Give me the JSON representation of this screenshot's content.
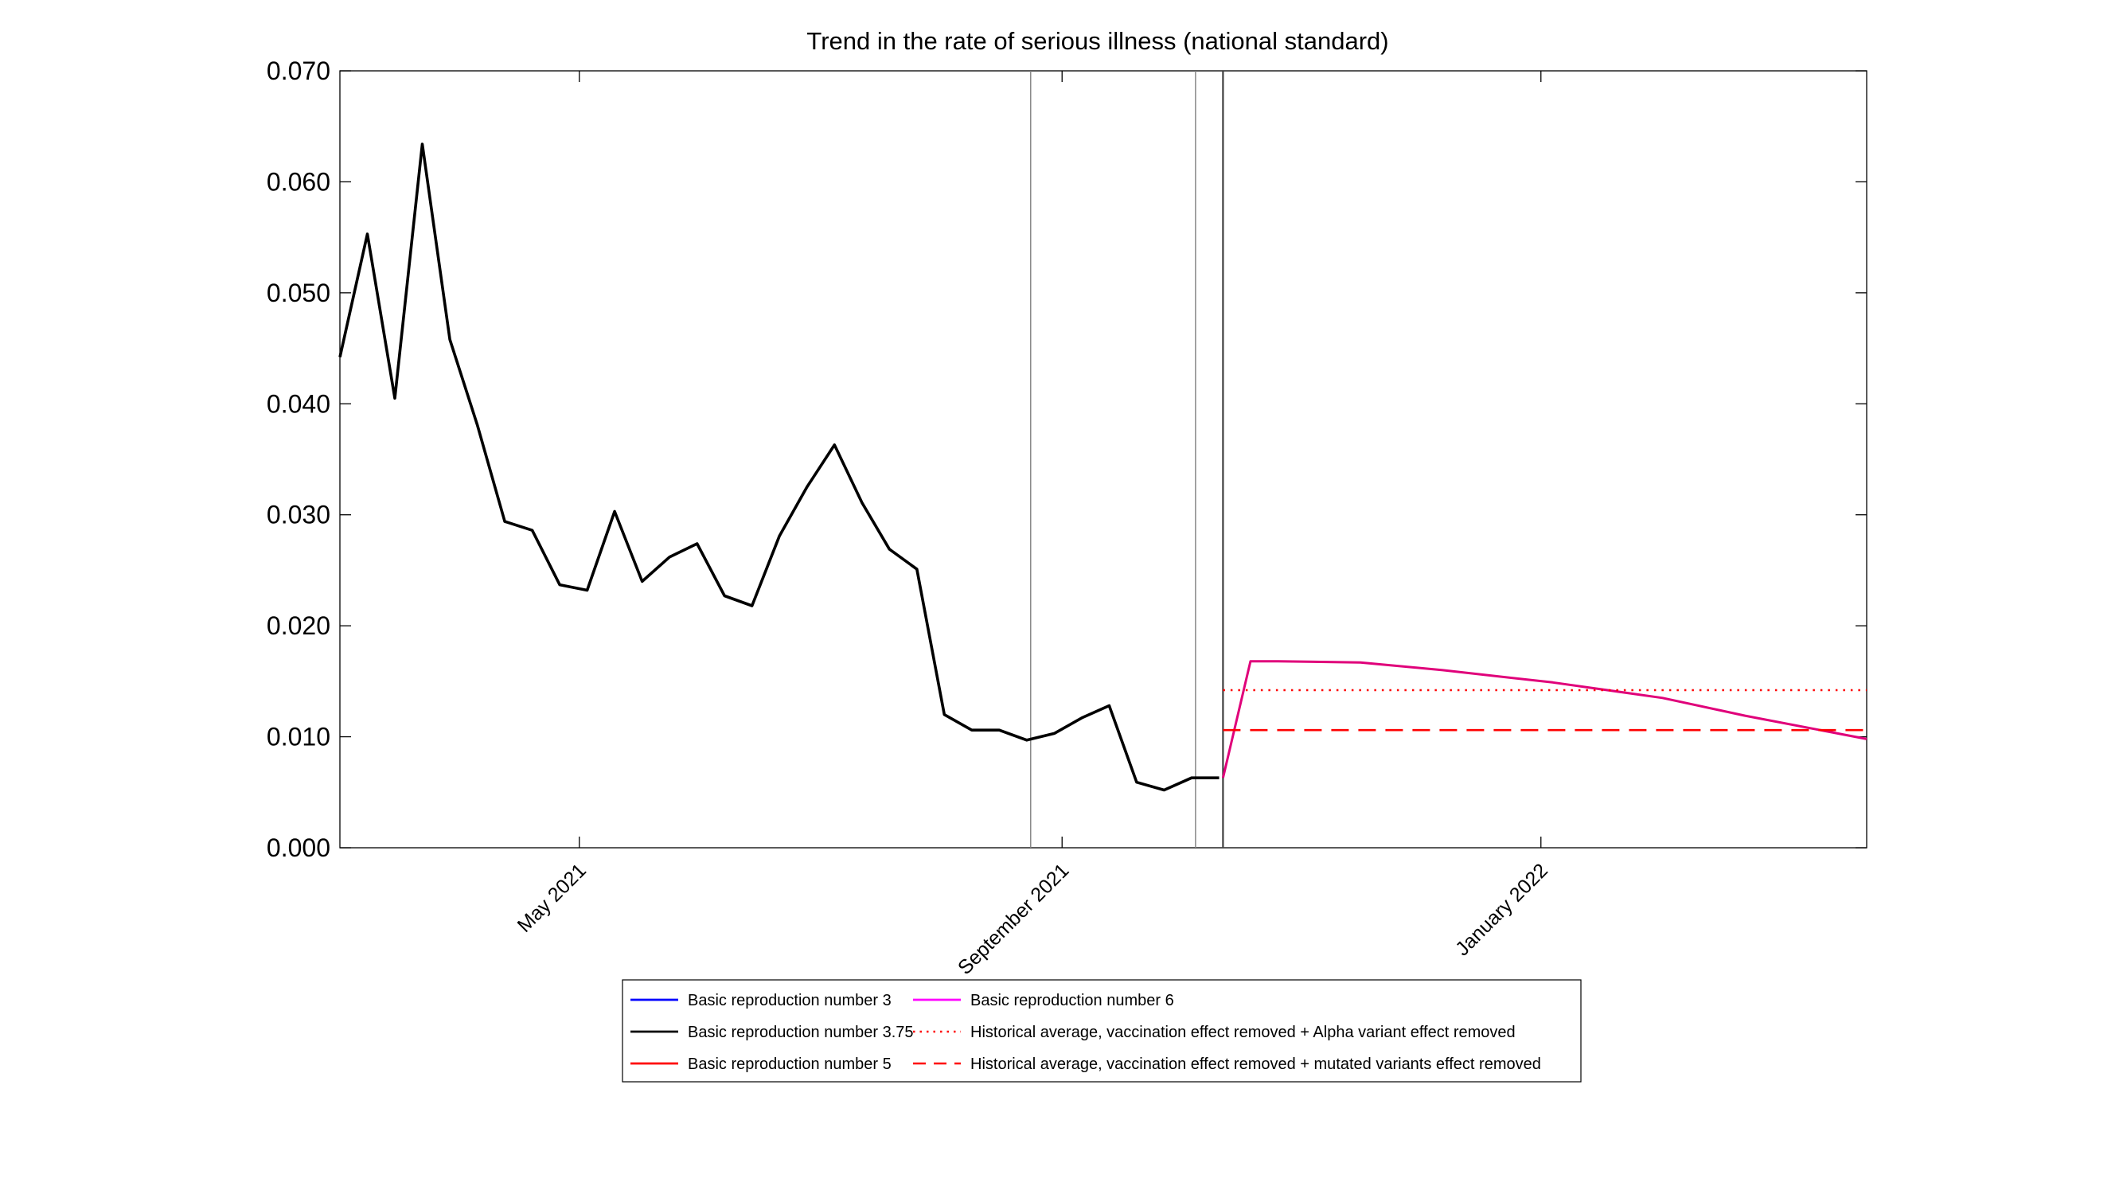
{
  "chart_data": {
    "type": "line",
    "title": "Trend in the rate of serious illness (national standard)",
    "xlabel": "",
    "ylabel": "",
    "x_type": "date",
    "xlim": [
      "2021-03-01",
      "2022-03-25"
    ],
    "ylim": [
      0,
      0.07
    ],
    "yticks": [
      0,
      0.01,
      0.02,
      0.03,
      0.04,
      0.05,
      0.06,
      0.07
    ],
    "ytick_labels": [
      "0.000",
      "0.010",
      "0.020",
      "0.030",
      "0.040",
      "0.050",
      "0.060",
      "0.070"
    ],
    "xticks": [
      {
        "date": "2021-05-01",
        "label": "May 2021"
      },
      {
        "date": "2021-09-01",
        "label": "September 2021"
      },
      {
        "date": "2022-01-01",
        "label": "January 2022"
      }
    ],
    "grid": false,
    "vertical_lines": [
      {
        "date": "2021-08-24",
        "color": "#808080"
      },
      {
        "date": "2021-10-05",
        "color": "#808080"
      },
      {
        "date": "2021-10-12",
        "color": "#404040"
      }
    ],
    "legend_position": "below plot, centered",
    "legend": [
      {
        "label": "Basic reproduction number 3",
        "color": "#0000ff",
        "style": "solid"
      },
      {
        "label": "Basic reproduction number 3.75",
        "color": "#000000",
        "style": "solid"
      },
      {
        "label": "Basic reproduction number 5",
        "color": "#ff0000",
        "style": "solid"
      },
      {
        "label": "Basic reproduction number 6",
        "color": "#ff00ff",
        "style": "solid"
      },
      {
        "label": "Historical average, vaccination effect removed + Alpha variant effect removed",
        "color": "#ff0000",
        "style": "dotted"
      },
      {
        "label": "Historical average, vaccination effect removed + mutated variants effect removed",
        "color": "#ff0000",
        "style": "dashed"
      }
    ],
    "series": [
      {
        "name": "Basic reproduction number 3.75",
        "color": "#000000",
        "style": "solid",
        "x": [
          "2021-03-01",
          "2021-03-08",
          "2021-03-15",
          "2021-03-22",
          "2021-03-29",
          "2021-04-05",
          "2021-04-12",
          "2021-04-19",
          "2021-04-26",
          "2021-05-03",
          "2021-05-10",
          "2021-05-17",
          "2021-05-24",
          "2021-05-31",
          "2021-06-07",
          "2021-06-14",
          "2021-06-21",
          "2021-06-28",
          "2021-07-05",
          "2021-07-12",
          "2021-07-19",
          "2021-07-26",
          "2021-08-02",
          "2021-08-09",
          "2021-08-16",
          "2021-08-23",
          "2021-08-30",
          "2021-09-06",
          "2021-09-13",
          "2021-09-20",
          "2021-09-27",
          "2021-10-04",
          "2021-10-11"
        ],
        "y": [
          0.0442,
          0.0553,
          0.0405,
          0.0634,
          0.0458,
          0.0381,
          0.0294,
          0.0286,
          0.0237,
          0.0232,
          0.0303,
          0.024,
          0.0262,
          0.0274,
          0.0227,
          0.0218,
          0.0281,
          0.0325,
          0.0363,
          0.0311,
          0.0269,
          0.0251,
          0.012,
          0.0106,
          0.0106,
          0.0097,
          0.0103,
          0.0117,
          0.0128,
          0.0059,
          0.0052,
          0.0063,
          0.0063
        ]
      },
      {
        "name": "Basic reproduction number 6",
        "color": "#e0007a",
        "style": "solid",
        "x": [
          "2021-10-12",
          "2021-10-19",
          "2021-10-26",
          "2021-11-16",
          "2021-12-07",
          "2022-01-04",
          "2022-02-01",
          "2022-02-22",
          "2022-03-25"
        ],
        "y": [
          0.0063,
          0.0168,
          0.0168,
          0.0167,
          0.016,
          0.0149,
          0.0135,
          0.0119,
          0.0098
        ]
      },
      {
        "name": "Historical average, vaccination effect removed + Alpha variant effect removed",
        "color": "#ff0000",
        "style": "dotted",
        "x": [
          "2021-10-12",
          "2022-03-25"
        ],
        "y": [
          0.0142,
          0.0142
        ]
      },
      {
        "name": "Historical average, vaccination effect removed + mutated variants effect removed",
        "color": "#ff0000",
        "style": "dashed",
        "x": [
          "2021-10-12",
          "2022-03-25"
        ],
        "y": [
          0.0106,
          0.0106
        ]
      }
    ]
  }
}
